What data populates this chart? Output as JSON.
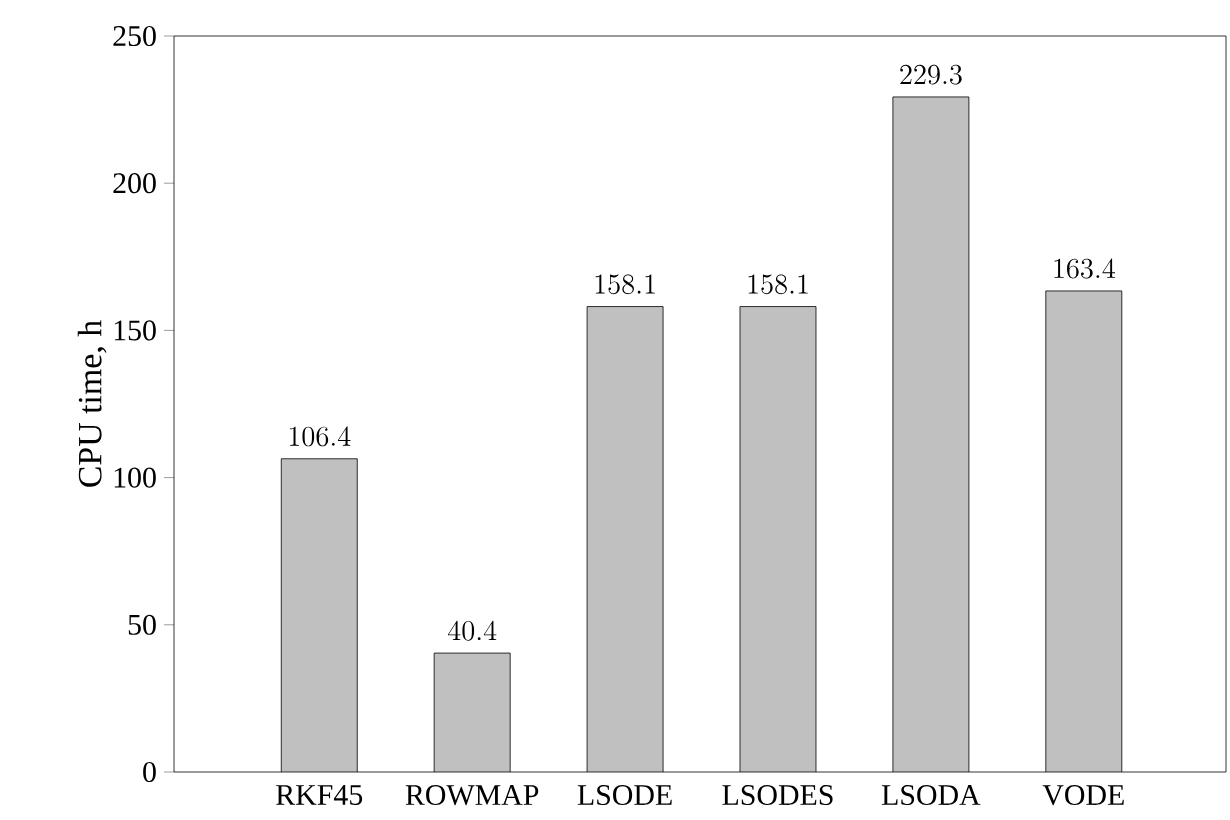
{
  "chart_data": {
    "type": "bar",
    "ylabel": "CPU time, h",
    "categories": [
      "RKF45",
      "ROWMAP",
      "LSODE",
      "LSODES",
      "LSODA",
      "VODE"
    ],
    "values": [
      106.4,
      40.4,
      158.1,
      158.1,
      229.3,
      163.4
    ],
    "color": "#c0c0c0",
    "data_labels": true,
    "ylim": [
      0,
      250
    ],
    "yticks": [
      0,
      50,
      100,
      150,
      200,
      250
    ]
  }
}
